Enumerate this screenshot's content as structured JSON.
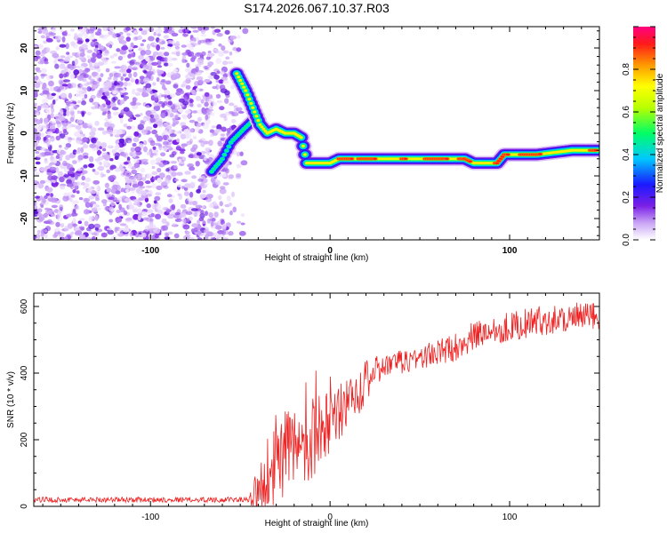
{
  "title": "S174.2026.067.10.37.R03",
  "chart_data": [
    {
      "type": "heatmap",
      "xlabel": "Height of straight line (km)",
      "ylabel": "Frequency (Hz)",
      "xlim": [
        -165,
        150
      ],
      "ylim": [
        -25,
        25
      ],
      "xticks": [
        -100,
        0,
        100
      ],
      "yticks": [
        -20,
        -10,
        0,
        10,
        20
      ],
      "colorbar": {
        "label": "Normalized spectral amplitude",
        "range": [
          0,
          1
        ],
        "ticks": [
          0.0,
          0.2,
          0.4,
          0.6,
          0.8
        ]
      },
      "noise_region_x": [
        -165,
        -55
      ],
      "feature_track": [
        {
          "x": -52,
          "y": 14
        },
        {
          "x": -47,
          "y": 10
        },
        {
          "x": -43,
          "y": 6
        },
        {
          "x": -39,
          "y": 2
        },
        {
          "x": -35,
          "y": 0
        },
        {
          "x": -30,
          "y": 1
        },
        {
          "x": -25,
          "y": 0
        },
        {
          "x": -20,
          "y": 0
        },
        {
          "x": -16,
          "y": -1
        },
        {
          "x": -13,
          "y": -7
        },
        {
          "x": -5,
          "y": -7
        },
        {
          "x": 0,
          "y": -7
        },
        {
          "x": 5,
          "y": -6
        },
        {
          "x": 20,
          "y": -6
        },
        {
          "x": 40,
          "y": -6
        },
        {
          "x": 60,
          "y": -6
        },
        {
          "x": 75,
          "y": -6
        },
        {
          "x": 80,
          "y": -7
        },
        {
          "x": 93,
          "y": -7
        },
        {
          "x": 97,
          "y": -5
        },
        {
          "x": 115,
          "y": -5
        },
        {
          "x": 135,
          "y": -4
        },
        {
          "x": 150,
          "y": -4
        }
      ],
      "secondary_track": [
        {
          "x": -66,
          "y": -9
        },
        {
          "x": -60,
          "y": -6
        },
        {
          "x": -55,
          "y": -2
        },
        {
          "x": -48,
          "y": 1
        },
        {
          "x": -43,
          "y": 3
        }
      ]
    },
    {
      "type": "line",
      "xlabel": "Height of straight line (km)",
      "ylabel": "SNR (10 * v/v)",
      "xlim": [
        -165,
        150
      ],
      "ylim": [
        0,
        640
      ],
      "xticks": [
        -100,
        0,
        100
      ],
      "yticks": [
        0,
        200,
        400,
        600
      ],
      "color": "#ee2222",
      "trend": [
        {
          "x": -165,
          "y": 20
        },
        {
          "x": -45,
          "y": 20
        },
        {
          "x": -40,
          "y": 40
        },
        {
          "x": -35,
          "y": 90
        },
        {
          "x": -30,
          "y": 150
        },
        {
          "x": -20,
          "y": 170
        },
        {
          "x": -10,
          "y": 210
        },
        {
          "x": 0,
          "y": 250
        },
        {
          "x": 10,
          "y": 310
        },
        {
          "x": 20,
          "y": 380
        },
        {
          "x": 30,
          "y": 420
        },
        {
          "x": 45,
          "y": 440
        },
        {
          "x": 60,
          "y": 460
        },
        {
          "x": 70,
          "y": 480
        },
        {
          "x": 80,
          "y": 510
        },
        {
          "x": 90,
          "y": 530
        },
        {
          "x": 100,
          "y": 540
        },
        {
          "x": 110,
          "y": 550
        },
        {
          "x": 120,
          "y": 560
        },
        {
          "x": 130,
          "y": 565
        },
        {
          "x": 150,
          "y": 570
        }
      ],
      "noise_amplitude": [
        {
          "x": -165,
          "y": 8
        },
        {
          "x": -45,
          "y": 8
        },
        {
          "x": -38,
          "y": 120
        },
        {
          "x": -20,
          "y": 140
        },
        {
          "x": 0,
          "y": 110
        },
        {
          "x": 15,
          "y": 80
        },
        {
          "x": 30,
          "y": 35
        },
        {
          "x": 80,
          "y": 45
        },
        {
          "x": 150,
          "y": 45
        }
      ]
    }
  ]
}
